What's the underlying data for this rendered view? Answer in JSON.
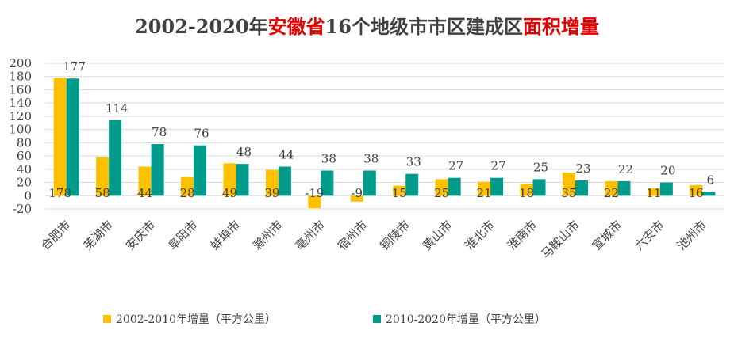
{
  "title": {
    "part1": "2002-2020年",
    "part2": "安徽省",
    "part3": "16个地级市市区建成区",
    "part4": "面积增量"
  },
  "colors": {
    "series_a": "#FFC000",
    "series_b": "#009B8B",
    "title_highlight": "#E00000"
  },
  "chart_data": {
    "type": "bar",
    "title": "2002-2020年安徽省16个地级市市区建成区面积增量",
    "categories": [
      "合肥市",
      "芜湖市",
      "安庆市",
      "阜阳市",
      "蚌埠市",
      "滁州市",
      "亳州市",
      "宿州市",
      "铜陵市",
      "黄山市",
      "淮北市",
      "淮南市",
      "马鞍山市",
      "宣城市",
      "六安市",
      "池州市"
    ],
    "series": [
      {
        "name": "2002-2010年增量（平方公里）",
        "values": [
          178,
          58,
          44,
          28,
          49,
          39,
          -19,
          -9,
          15,
          25,
          21,
          18,
          35,
          22,
          11,
          16
        ]
      },
      {
        "name": "2010-2020年增量（平方公里）",
        "values": [
          177,
          114,
          78,
          76,
          48,
          44,
          38,
          38,
          33,
          27,
          27,
          25,
          23,
          22,
          20,
          6
        ]
      }
    ],
    "ylim": [
      -20,
      200
    ],
    "yticks": [
      -20,
      0,
      20,
      40,
      60,
      80,
      100,
      120,
      140,
      160,
      180,
      200
    ],
    "grid": true,
    "legend_position": "bottom"
  }
}
